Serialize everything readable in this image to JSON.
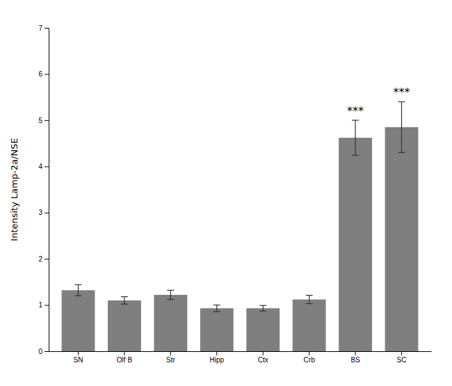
{
  "chart_data": {
    "type": "bar",
    "categories": [
      "SN",
      "Olf B",
      "Str",
      "Hipp",
      "Ctx",
      "Crb",
      "BS",
      "SC"
    ],
    "values": [
      1.32,
      1.1,
      1.22,
      0.93,
      0.93,
      1.12,
      4.62,
      4.85
    ],
    "errors": [
      0.12,
      0.08,
      0.1,
      0.07,
      0.06,
      0.09,
      0.38,
      0.55
    ],
    "color": "#7f7f7f",
    "ylabel": "Intensity Lamp-2a/NSE",
    "ylim": [
      0,
      7
    ],
    "yticks": [
      0,
      1,
      2,
      3,
      4,
      5,
      6,
      7
    ],
    "grid": false,
    "annotations": [
      {
        "text": "***",
        "x": "BS"
      },
      {
        "text": "***",
        "x": "SC"
      }
    ]
  }
}
